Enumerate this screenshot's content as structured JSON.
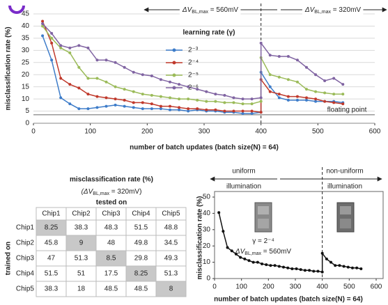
{
  "chart_data": [
    {
      "type": "line",
      "x_label": "number of batch updates (batch size(N) = 64)",
      "y_label": "misclassification rate (%)",
      "legend_title": "learning rate (γ)",
      "x": [
        16,
        32,
        48,
        64,
        80,
        96,
        112,
        128,
        144,
        160,
        176,
        192,
        208,
        224,
        240,
        256,
        272,
        288,
        304,
        320,
        336,
        352,
        368,
        384,
        400,
        400,
        416,
        432,
        448,
        464,
        480,
        496,
        512,
        528,
        544
      ],
      "series": [
        {
          "name": "2⁻³",
          "color": "#3d7cc9",
          "values": [
            36,
            26,
            10.5,
            8,
            6,
            6,
            6.5,
            7,
            7.5,
            7,
            6.5,
            6,
            6,
            6,
            5.5,
            5.5,
            5,
            5.5,
            5,
            5,
            4.5,
            4.5,
            4,
            4,
            4.5,
            21,
            15,
            10.5,
            9.5,
            9.5,
            9.5,
            9,
            9,
            9,
            8.5
          ]
        },
        {
          "name": "2⁻⁴",
          "color": "#c0392b",
          "values": [
            42,
            33,
            18.5,
            16,
            14.5,
            12,
            11,
            10.5,
            10,
            9.5,
            8.5,
            8.5,
            8,
            7,
            7,
            6.5,
            6,
            6,
            5.5,
            5.5,
            5,
            5,
            5,
            5,
            4.5,
            18,
            13,
            12,
            11,
            11,
            10.5,
            10,
            9,
            8.5,
            8
          ]
        },
        {
          "name": "2⁻⁵",
          "color": "#9bbb59",
          "values": [
            40,
            35,
            31,
            29,
            23,
            18.5,
            18.5,
            17,
            15,
            14,
            13,
            12,
            11.5,
            11,
            10.5,
            10,
            10,
            9.5,
            9,
            9,
            8.5,
            8.5,
            8,
            8,
            9,
            27,
            20,
            19,
            18,
            17,
            14,
            13,
            12.5,
            12,
            12
          ]
        },
        {
          "name": "2⁻⁶",
          "color": "#8064a2",
          "values": [
            41,
            37,
            32,
            31,
            32,
            31,
            26,
            26,
            25,
            23,
            21,
            20,
            19.5,
            18,
            17,
            16,
            15,
            14,
            13,
            12,
            11.5,
            10.5,
            10,
            10,
            10.5,
            33,
            28,
            27.5,
            27.5,
            26,
            23,
            20,
            17.5,
            18.5,
            16
          ]
        }
      ],
      "xlim": [
        0,
        600
      ],
      "xticks": [
        0,
        100,
        200,
        300,
        400,
        500,
        600
      ],
      "ylim": [
        0,
        45
      ],
      "yticks": [
        0,
        5,
        10,
        15,
        20,
        25,
        30,
        35,
        40,
        45
      ],
      "grid": true,
      "reference_line": {
        "value": 3.5,
        "label": "floating point"
      },
      "divider": 400,
      "annotations": [
        {
          "parts": [
            "ΔV",
            "BL,max",
            " = 560mV"
          ]
        },
        {
          "parts": [
            "ΔV",
            "BL,max",
            " = 320mV"
          ]
        }
      ]
    },
    {
      "type": "line",
      "x_label": "number of batch updates (batch size(N) = 64)",
      "y_label": "misclassification rate (%)",
      "x": [
        16,
        32,
        48,
        64,
        80,
        96,
        112,
        128,
        144,
        160,
        176,
        192,
        208,
        224,
        240,
        256,
        272,
        288,
        304,
        320,
        336,
        352,
        368,
        384,
        400,
        400,
        416,
        432,
        448,
        464,
        480,
        496,
        512,
        528,
        544
      ],
      "series": [
        {
          "color": "#111111",
          "values": [
            40.5,
            29,
            19,
            17,
            15,
            13,
            12,
            11,
            10,
            10,
            9,
            8.5,
            8,
            8,
            7.5,
            7,
            6.5,
            6,
            6,
            5.5,
            5,
            5,
            4.5,
            4.5,
            4,
            15.5,
            12,
            10,
            8,
            8,
            7.5,
            7,
            6.5,
            6.5,
            6
          ]
        }
      ],
      "xlim": [
        0,
        600
      ],
      "xticks": [
        0,
        100,
        200,
        300,
        400,
        500,
        600
      ],
      "ylim": [
        0,
        50
      ],
      "yticks": [
        0,
        10,
        20,
        30,
        40,
        50
      ],
      "grid": false,
      "divider": 400,
      "regions": [
        {
          "lines": [
            "uniform",
            "illumination"
          ]
        },
        {
          "lines": [
            "non-uniform",
            "illumination"
          ]
        }
      ],
      "annotations": [
        {
          "parts": [
            "γ = 2⁻⁴"
          ]
        },
        {
          "parts": [
            "ΔV",
            "BL,max",
            " = 560mV"
          ]
        }
      ]
    }
  ],
  "table": {
    "title": "misclassification rate (%)",
    "subtitle_parts": [
      "(ΔV",
      "BL,max",
      " = 320mV)"
    ],
    "column_header": "tested on",
    "row_header": "trained on",
    "columns": [
      "Chip1",
      "Chip2",
      "Chip3",
      "Chip4",
      "Chip5"
    ],
    "rows": [
      {
        "label": "Chip1",
        "cells": [
          8.25,
          38.3,
          48.3,
          51.5,
          48.8
        ]
      },
      {
        "label": "Chip2",
        "cells": [
          45.8,
          9,
          48,
          49.8,
          34.5
        ]
      },
      {
        "label": "Chip3",
        "cells": [
          47,
          51.3,
          8.5,
          29.8,
          49.3
        ]
      },
      {
        "label": "Chip4",
        "cells": [
          51.5,
          51,
          17.5,
          8.25,
          51.3
        ]
      },
      {
        "label": "Chip5",
        "cells": [
          38.3,
          18,
          48.5,
          48.5,
          8
        ]
      }
    ]
  }
}
